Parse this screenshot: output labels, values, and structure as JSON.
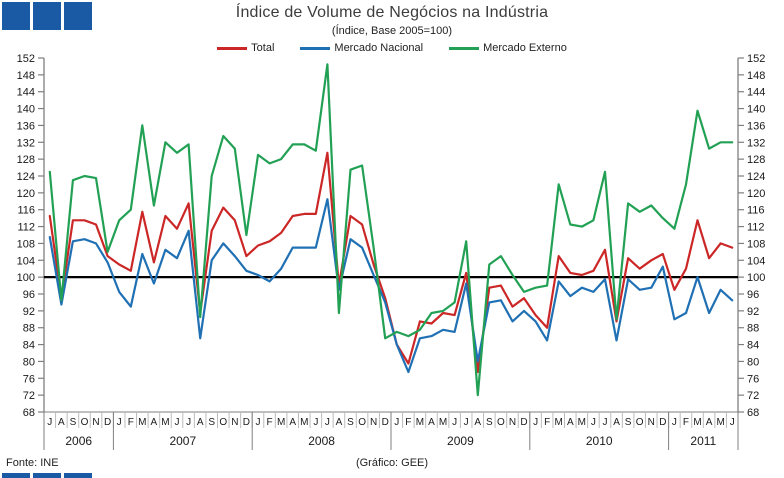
{
  "header": {
    "title": "Índice de Volume de Negócios na Indústria",
    "subtitle": "(Índice, Base 2005=100)"
  },
  "footer": {
    "source": "Fonte: INE",
    "credit": "(Gráfico: GEE)"
  },
  "colors": {
    "logo_blue": "#1a5aa5",
    "total_red": "#cc2727",
    "nacional_blue": "#2070b4",
    "externo_green": "#22a155",
    "baseline_black": "#000000",
    "axis_gray": "#7f7f7f"
  },
  "chart_data": {
    "type": "line",
    "title": "Índice de Volume de Negócios na Indústria",
    "subtitle": "(Índice, Base 2005=100)",
    "ylabel": "",
    "xlabel": "",
    "y_min": 68,
    "y_max": 152,
    "y_step": 4,
    "baseline": 100,
    "grid": false,
    "legend_position": "top",
    "x_labels": [
      "J",
      "A",
      "S",
      "O",
      "N",
      "D",
      "J",
      "F",
      "M",
      "A",
      "M",
      "J",
      "J",
      "A",
      "S",
      "O",
      "N",
      "D",
      "J",
      "F",
      "M",
      "A",
      "M",
      "J",
      "J",
      "A",
      "S",
      "O",
      "N",
      "D",
      "J",
      "F",
      "M",
      "A",
      "M",
      "J",
      "J",
      "A",
      "S",
      "O",
      "N",
      "D",
      "J",
      "F",
      "M",
      "A",
      "M",
      "J",
      "J",
      "A",
      "S",
      "O",
      "N",
      "D",
      "J",
      "F",
      "M",
      "A",
      "M",
      "J"
    ],
    "years": [
      {
        "label": "2006",
        "months": 6
      },
      {
        "label": "2007",
        "months": 12
      },
      {
        "label": "2008",
        "months": 12
      },
      {
        "label": "2009",
        "months": 12
      },
      {
        "label": "2010",
        "months": 12
      },
      {
        "label": "2011",
        "months": 6
      }
    ],
    "series": [
      {
        "name": "Total",
        "color": "#cc2727",
        "values": [
          114.5,
          95,
          113.5,
          113.5,
          112.5,
          105,
          103,
          101.5,
          115.5,
          103.5,
          114.5,
          111.5,
          117.5,
          91.5,
          111,
          116.5,
          113.5,
          105,
          107.5,
          108.5,
          110.5,
          114.5,
          115,
          115,
          129.5,
          98,
          114.5,
          112.5,
          103,
          95,
          84,
          79.5,
          89.5,
          89,
          91.5,
          91,
          101,
          77.5,
          97.5,
          98,
          93,
          95,
          91,
          88,
          105,
          101,
          100.5,
          101.5,
          106.5,
          89.5,
          104.5,
          102,
          104,
          105.5,
          97,
          102,
          113.5,
          104.5,
          108,
          107
        ]
      },
      {
        "name": "Mercado Nacional",
        "color": "#2070b4",
        "values": [
          109.5,
          93.5,
          108.5,
          109,
          108,
          103.5,
          96.5,
          93,
          105.5,
          98.5,
          106.5,
          104.5,
          111,
          85.5,
          104,
          108,
          105,
          101.5,
          100.5,
          99,
          102,
          107,
          107,
          107,
          118.5,
          97,
          109,
          107,
          100.5,
          94,
          84,
          77.5,
          85.5,
          86,
          87.5,
          87,
          98.5,
          80,
          94,
          94.5,
          89.5,
          92,
          89.5,
          85,
          99,
          95.5,
          97.5,
          96.5,
          99.5,
          85,
          99.5,
          97,
          97.5,
          102.5,
          90,
          91.5,
          100,
          91.5,
          97,
          94.5
        ]
      },
      {
        "name": "Mercado Externo",
        "color": "#22a155",
        "values": [
          125,
          94.5,
          123,
          124,
          123.5,
          106,
          113.5,
          116,
          136,
          117,
          132,
          129.5,
          131.5,
          90.5,
          124,
          133.5,
          130.5,
          110,
          129,
          127,
          128,
          131.5,
          131.5,
          130,
          150.5,
          91.5,
          125.5,
          126.5,
          107,
          85.5,
          87,
          86,
          87.5,
          91.5,
          92,
          94,
          108.5,
          72,
          103,
          105,
          100.5,
          96.5,
          97.5,
          98,
          122,
          112.5,
          112,
          113.5,
          125,
          90,
          117.5,
          115.5,
          117,
          114,
          111.5,
          122,
          139.5,
          130.5,
          132,
          132
        ]
      }
    ]
  }
}
